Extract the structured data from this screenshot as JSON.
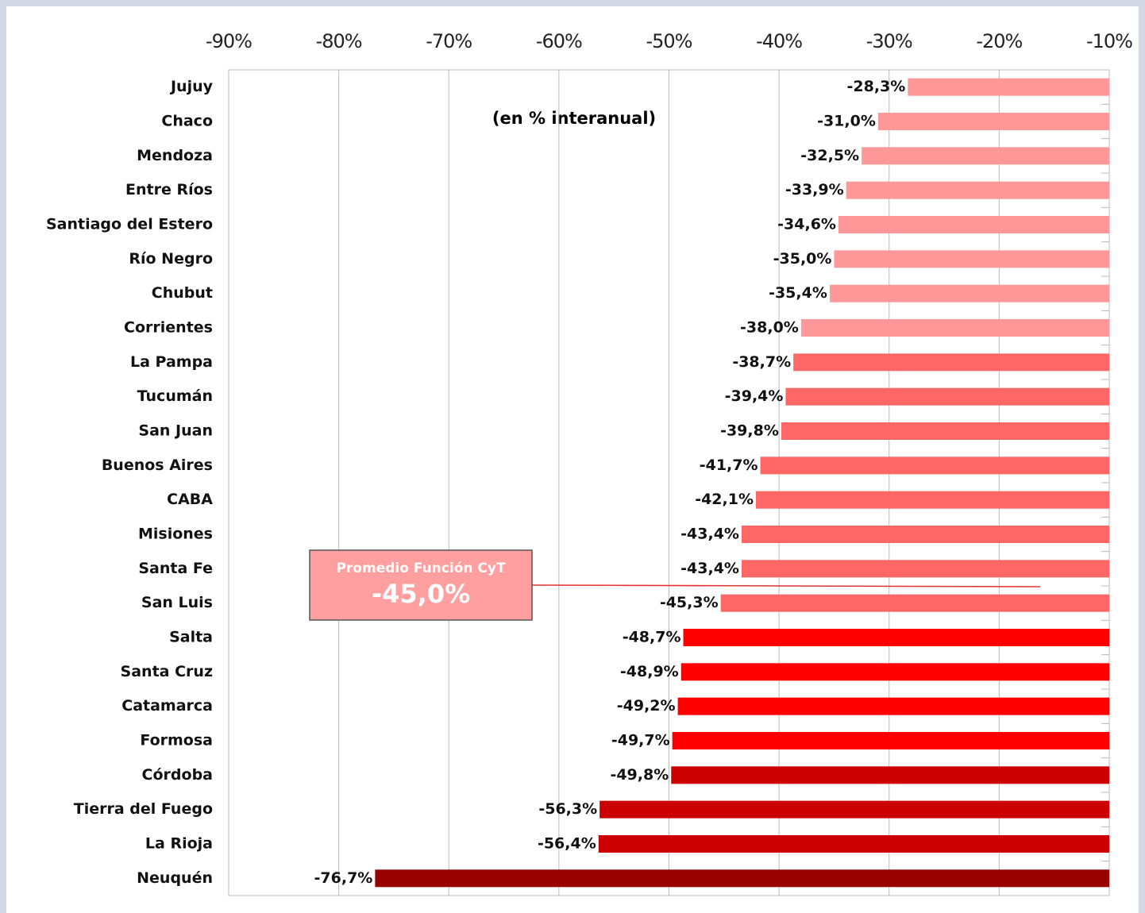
{
  "chart_data": {
    "type": "hbar",
    "subtitle": "(en % interanual)",
    "categories": [
      "Jujuy",
      "Chaco",
      "Mendoza",
      "Entre Ríos",
      "Santiago del Estero",
      "Río Negro",
      "Chubut",
      "Corrientes",
      "La Pampa",
      "Tucumán",
      "San Juan",
      "Buenos Aires",
      "CABA",
      "Misiones",
      "Santa Fe",
      "San Luis",
      "Salta",
      "Santa Cruz",
      "Catamarca",
      "Formosa",
      "Córdoba",
      "Tierra del Fuego",
      "La Rioja",
      "Neuquén"
    ],
    "values": [
      -28.3,
      -31.0,
      -32.5,
      -33.9,
      -34.6,
      -35.0,
      -35.4,
      -38.0,
      -38.7,
      -39.4,
      -39.8,
      -41.7,
      -42.1,
      -43.4,
      -43.4,
      -45.3,
      -48.7,
      -48.9,
      -49.2,
      -49.7,
      -49.8,
      -56.3,
      -56.4,
      -76.7
    ],
    "value_labels": [
      "-28,3%",
      "-31,0%",
      "-32,5%",
      "-33,9%",
      "-34,6%",
      "-35,0%",
      "-35,4%",
      "-38,0%",
      "-38,7%",
      "-39,4%",
      "-39,8%",
      "-41,7%",
      "-42,1%",
      "-43,4%",
      "-43,4%",
      "-45,3%",
      "-48,7%",
      "-48,9%",
      "-49,2%",
      "-49,7%",
      "-49,8%",
      "-56,3%",
      "-56,4%",
      "-76,7%"
    ],
    "colors": [
      "#ff9999",
      "#ff9999",
      "#ff9999",
      "#ff9999",
      "#ff9999",
      "#ff9999",
      "#ff9999",
      "#ff9999",
      "#ff6666",
      "#ff6666",
      "#ff6666",
      "#ff6666",
      "#ff6666",
      "#ff6666",
      "#ff6666",
      "#ff6666",
      "#ff0000",
      "#ff0000",
      "#ff0000",
      "#ff0000",
      "#cc0000",
      "#cc0000",
      "#cc0000",
      "#990000"
    ],
    "xlim": [
      -90,
      -10
    ],
    "xticks": [
      {
        "value": -90,
        "label": "-90%"
      },
      {
        "value": -80,
        "label": "-80%"
      },
      {
        "value": -70,
        "label": "-70%"
      },
      {
        "value": -60,
        "label": "-60%"
      },
      {
        "value": -50,
        "label": "-50%"
      },
      {
        "value": -40,
        "label": "-40%"
      },
      {
        "value": -30,
        "label": "-30%"
      },
      {
        "value": -20,
        "label": "-20%"
      },
      {
        "value": -10,
        "label": "-10%"
      }
    ],
    "grid": true,
    "annotation": {
      "text": "Promedio Función CyT",
      "value": -45.0,
      "label": "-45,0%"
    }
  }
}
